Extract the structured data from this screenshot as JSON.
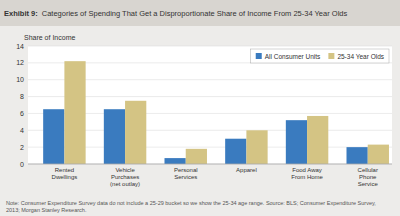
{
  "chart_data": {
    "type": "bar",
    "title": "Exhibit 9:",
    "subtitle": "Categories of Spending That Get a Disproportionate Share of Income From 25-34 Year Olds",
    "ylabel": "Share of Income",
    "annotations": [
      "Note: Consumer Expenditure Survey data do not include a 25-29 bucket so we show the 25-34 age range. Source: BLS; Consumer Expenditure Survey,\n2013; Morgan Stanley Research."
    ],
    "categories": [
      "Rented\nDwellings",
      "Vehicle\nPurchases\n(net outlay)",
      "Personal\nServices",
      "Apparel",
      "Food Away\nFrom Home",
      "Cellular\nPhone\nService"
    ],
    "series": [
      {
        "name": "All Consumer Units",
        "color": "#3a7bbf",
        "values": [
          6.5,
          6.5,
          0.7,
          3.0,
          5.2,
          2.0
        ]
      },
      {
        "name": "25-34 Year Olds",
        "color": "#d4c484",
        "values": [
          12.2,
          7.5,
          1.8,
          4.0,
          5.7,
          2.3
        ]
      }
    ],
    "ylim": [
      0,
      14
    ],
    "yticks": [
      0,
      2,
      4,
      6,
      8,
      10,
      12,
      14
    ],
    "grid": true,
    "legend": "upper right"
  }
}
